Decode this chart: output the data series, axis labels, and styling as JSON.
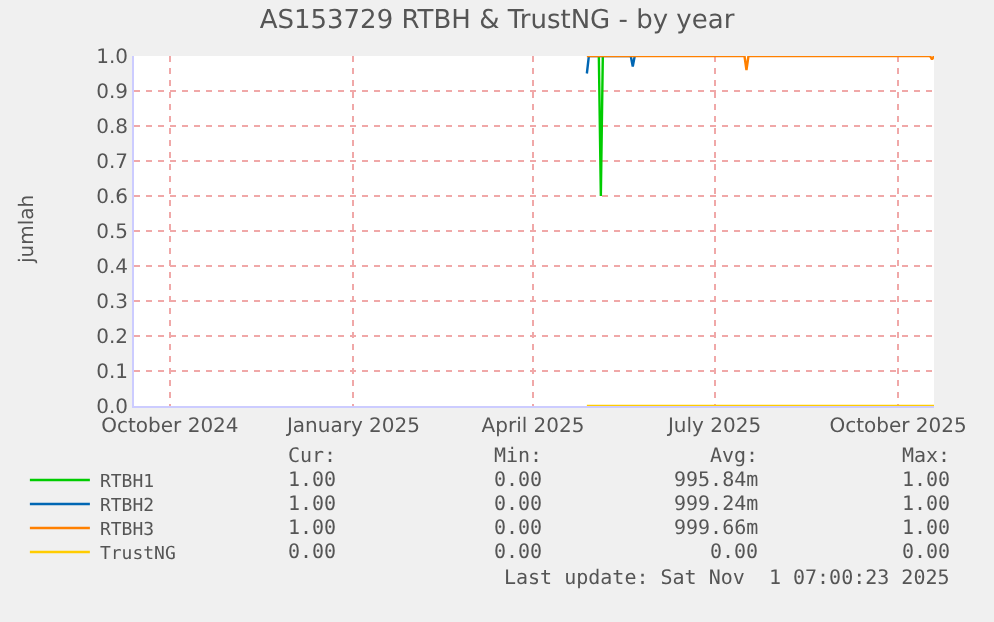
{
  "chart_data": {
    "type": "line",
    "title": "AS153729 RTBH & TrustNG - by year",
    "ylabel": "jumlah",
    "xlim": [
      "2024-09-13",
      "2025-10-19"
    ],
    "xticks": [
      {
        "value": "2024-10-01",
        "label": "October 2024"
      },
      {
        "value": "2025-01-01",
        "label": "January 2025"
      },
      {
        "value": "2025-04-01",
        "label": "April 2025"
      },
      {
        "value": "2025-07-01",
        "label": "July 2025"
      },
      {
        "value": "2025-10-01",
        "label": "October 2025"
      }
    ],
    "ylim": [
      0,
      1
    ],
    "yticks": [
      {
        "value": 0,
        "label": "0.0"
      },
      {
        "value": 0.1,
        "label": "0.1"
      },
      {
        "value": 0.2,
        "label": "0.2"
      },
      {
        "value": 0.3,
        "label": "0.3"
      },
      {
        "value": 0.4,
        "label": "0.4"
      },
      {
        "value": 0.5,
        "label": "0.5"
      },
      {
        "value": 0.6,
        "label": "0.6"
      },
      {
        "value": 0.7,
        "label": "0.7"
      },
      {
        "value": 0.8,
        "label": "0.8"
      },
      {
        "value": 0.9,
        "label": "0.9"
      },
      {
        "value": 1,
        "label": "1.0"
      }
    ],
    "grid": true,
    "legend": "bottom",
    "marker": "none",
    "line_style": "solid",
    "series": [
      {
        "name": "RTBH1",
        "color": "#00cc00",
        "x": [
          "2025-05-04",
          "2025-05-05",
          "2025-05-06"
        ],
        "values": [
          1,
          0.6,
          1
        ]
      },
      {
        "name": "RTBH2",
        "color": "#0066b3",
        "x": [
          "2025-04-28",
          "2025-04-29",
          "2025-05-20",
          "2025-05-21",
          "2025-05-22"
        ],
        "values": [
          0.95,
          1,
          1,
          0.97,
          1
        ]
      },
      {
        "name": "RTBH3",
        "color": "#ff8000",
        "x": [
          "2025-04-28",
          "2025-07-16",
          "2025-07-17",
          "2025-07-18",
          "2025-10-17",
          "2025-10-18",
          "2025-10-19"
        ],
        "values": [
          1,
          1,
          0.96,
          1,
          1,
          0.99,
          1
        ]
      },
      {
        "name": "TrustNG",
        "color": "#ffcc00",
        "x": [
          "2025-04-28",
          "2025-10-19"
        ],
        "values": [
          0,
          0
        ]
      }
    ],
    "annotations": [
      "Cur:",
      "Min:",
      "Avg:",
      "Max:",
      "1.00",
      "0.00",
      "995.84m",
      "1.00",
      "1.00",
      "0.00",
      "999.24m",
      "1.00",
      "1.00",
      "0.00",
      "999.66m",
      "1.00",
      "0.00",
      "0.00",
      "0.00",
      "0.00",
      "Last update: Sat Nov  1 07:00:23 2025"
    ]
  }
}
